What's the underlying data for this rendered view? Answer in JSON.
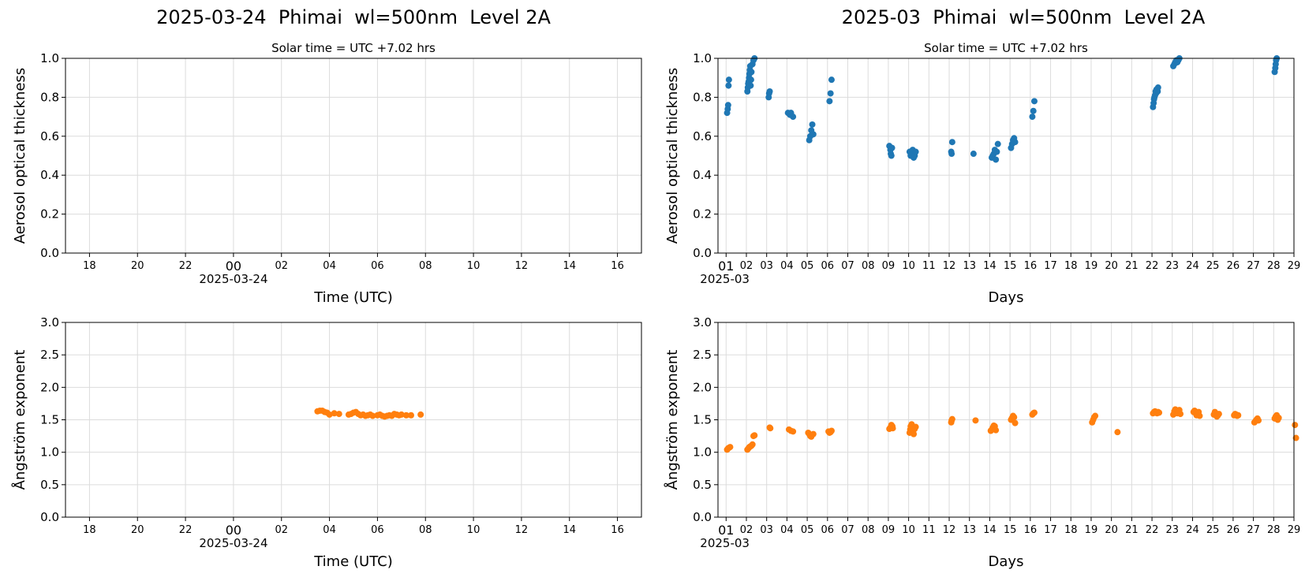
{
  "titles": {
    "left": "2025-03-24  Phimai  wl=500nm  Level 2A",
    "right": "2025-03  Phimai  wl=500nm  Level 2A"
  },
  "chart_data": [
    {
      "id": "daily_aod",
      "type": "scatter",
      "subtitle": "Solar time = UTC +7.02 hrs",
      "xlabel": "Time (UTC)",
      "ylabel": "Aerosol optical thickness",
      "x_tick_labels": [
        "18",
        "20",
        "22",
        "00",
        "02",
        "04",
        "06",
        "08",
        "10",
        "12",
        "14",
        "16"
      ],
      "x_date_label": "2025-03-24",
      "xlim_hours": [
        -7,
        17
      ],
      "ylim": [
        0,
        1.0
      ],
      "y_ticks": [
        "0.0",
        "0.2",
        "0.4",
        "0.6",
        "0.8",
        "1.0"
      ],
      "grid": true,
      "series": [
        {
          "color": "#1f77b4",
          "points": []
        }
      ]
    },
    {
      "id": "daily_angstrom",
      "type": "scatter",
      "xlabel": "Time (UTC)",
      "ylabel": "Ångström exponent",
      "x_tick_labels": [
        "18",
        "20",
        "22",
        "00",
        "02",
        "04",
        "06",
        "08",
        "10",
        "12",
        "14",
        "16"
      ],
      "x_date_label": "2025-03-24",
      "xlim_hours": [
        -7,
        17
      ],
      "ylim": [
        0,
        3.0
      ],
      "y_ticks": [
        "0.0",
        "0.5",
        "1.0",
        "1.5",
        "2.0",
        "2.5",
        "3.0"
      ],
      "grid": true,
      "series": [
        {
          "color": "#ff7f0e",
          "points": [
            [
              3.5,
              1.63
            ],
            [
              3.6,
              1.64
            ],
            [
              3.7,
              1.64
            ],
            [
              3.8,
              1.62
            ],
            [
              3.9,
              1.61
            ],
            [
              4.0,
              1.58
            ],
            [
              4.2,
              1.6
            ],
            [
              4.4,
              1.59
            ],
            [
              4.8,
              1.58
            ],
            [
              4.9,
              1.59
            ],
            [
              5.0,
              1.61
            ],
            [
              5.1,
              1.62
            ],
            [
              5.2,
              1.59
            ],
            [
              5.3,
              1.57
            ],
            [
              5.4,
              1.58
            ],
            [
              5.5,
              1.56
            ],
            [
              5.6,
              1.57
            ],
            [
              5.7,
              1.58
            ],
            [
              5.8,
              1.56
            ],
            [
              6.0,
              1.57
            ],
            [
              6.1,
              1.58
            ],
            [
              6.2,
              1.56
            ],
            [
              6.3,
              1.55
            ],
            [
              6.4,
              1.56
            ],
            [
              6.5,
              1.57
            ],
            [
              6.6,
              1.56
            ],
            [
              6.7,
              1.59
            ],
            [
              6.8,
              1.58
            ],
            [
              6.9,
              1.57
            ],
            [
              7.0,
              1.58
            ],
            [
              7.2,
              1.57
            ],
            [
              7.4,
              1.57
            ],
            [
              7.8,
              1.58
            ]
          ]
        }
      ]
    },
    {
      "id": "monthly_aod",
      "type": "scatter",
      "subtitle": "Solar time = UTC +7.02 hrs",
      "xlabel": "Days",
      "ylabel": "Aerosol optical thickness",
      "x_tick_labels": [
        "01",
        "02",
        "03",
        "04",
        "05",
        "06",
        "07",
        "08",
        "09",
        "10",
        "11",
        "12",
        "13",
        "14",
        "15",
        "16",
        "17",
        "18",
        "19",
        "20",
        "21",
        "22",
        "23",
        "24",
        "25",
        "26",
        "27",
        "28",
        "29"
      ],
      "x_date_label": "2025-03",
      "xlim_days": [
        0.6,
        29.0
      ],
      "ylim": [
        0,
        1.0
      ],
      "y_ticks": [
        "0.0",
        "0.2",
        "0.4",
        "0.6",
        "0.8",
        "1.0"
      ],
      "grid": true,
      "series": [
        {
          "color": "#1f77b4",
          "points": [
            [
              1.05,
              0.72
            ],
            [
              1.08,
              0.74
            ],
            [
              1.1,
              0.76
            ],
            [
              1.12,
              0.86
            ],
            [
              1.14,
              0.89
            ],
            [
              2.05,
              0.83
            ],
            [
              2.07,
              0.85
            ],
            [
              2.09,
              0.87
            ],
            [
              2.11,
              0.88
            ],
            [
              2.13,
              0.9
            ],
            [
              2.15,
              0.92
            ],
            [
              2.17,
              0.94
            ],
            [
              2.19,
              0.96
            ],
            [
              2.21,
              0.86
            ],
            [
              2.23,
              0.89
            ],
            [
              2.25,
              0.93
            ],
            [
              2.3,
              0.97
            ],
            [
              2.35,
              0.99
            ],
            [
              2.4,
              1.0
            ],
            [
              3.1,
              0.8
            ],
            [
              3.12,
              0.82
            ],
            [
              3.15,
              0.83
            ],
            [
              4.05,
              0.72
            ],
            [
              4.15,
              0.71
            ],
            [
              4.2,
              0.72
            ],
            [
              4.3,
              0.7
            ],
            [
              5.1,
              0.58
            ],
            [
              5.15,
              0.6
            ],
            [
              5.2,
              0.63
            ],
            [
              5.25,
              0.66
            ],
            [
              5.3,
              0.61
            ],
            [
              6.1,
              0.78
            ],
            [
              6.15,
              0.82
            ],
            [
              6.2,
              0.89
            ],
            [
              9.05,
              0.55
            ],
            [
              9.1,
              0.53
            ],
            [
              9.12,
              0.51
            ],
            [
              9.15,
              0.5
            ],
            [
              9.18,
              0.54
            ],
            [
              10.05,
              0.52
            ],
            [
              10.1,
              0.5
            ],
            [
              10.15,
              0.51
            ],
            [
              10.2,
              0.53
            ],
            [
              10.25,
              0.49
            ],
            [
              10.3,
              0.5
            ],
            [
              10.35,
              0.52
            ],
            [
              12.1,
              0.52
            ],
            [
              12.12,
              0.51
            ],
            [
              12.15,
              0.57
            ],
            [
              13.2,
              0.51
            ],
            [
              14.1,
              0.49
            ],
            [
              14.15,
              0.5
            ],
            [
              14.2,
              0.51
            ],
            [
              14.25,
              0.53
            ],
            [
              14.3,
              0.48
            ],
            [
              14.35,
              0.52
            ],
            [
              14.4,
              0.56
            ],
            [
              15.05,
              0.54
            ],
            [
              15.1,
              0.56
            ],
            [
              15.15,
              0.58
            ],
            [
              15.2,
              0.59
            ],
            [
              15.25,
              0.57
            ],
            [
              16.1,
              0.7
            ],
            [
              16.15,
              0.73
            ],
            [
              16.2,
              0.78
            ],
            [
              22.05,
              0.75
            ],
            [
              22.08,
              0.77
            ],
            [
              22.1,
              0.79
            ],
            [
              22.12,
              0.8
            ],
            [
              22.15,
              0.81
            ],
            [
              22.18,
              0.83
            ],
            [
              22.2,
              0.82
            ],
            [
              22.22,
              0.84
            ],
            [
              22.25,
              0.84
            ],
            [
              22.28,
              0.83
            ],
            [
              22.3,
              0.85
            ],
            [
              23.05,
              0.96
            ],
            [
              23.1,
              0.97
            ],
            [
              23.15,
              0.98
            ],
            [
              23.2,
              0.99
            ],
            [
              23.25,
              0.98
            ],
            [
              23.3,
              0.99
            ],
            [
              23.35,
              1.0
            ],
            [
              28.05,
              0.93
            ],
            [
              28.08,
              0.95
            ],
            [
              28.1,
              0.97
            ],
            [
              28.12,
              0.99
            ],
            [
              28.15,
              1.0
            ]
          ]
        }
      ]
    },
    {
      "id": "monthly_angstrom",
      "type": "scatter",
      "xlabel": "Days",
      "ylabel": "Ångström exponent",
      "x_tick_labels": [
        "01",
        "02",
        "03",
        "04",
        "05",
        "06",
        "07",
        "08",
        "09",
        "10",
        "11",
        "12",
        "13",
        "14",
        "15",
        "16",
        "17",
        "18",
        "19",
        "20",
        "21",
        "22",
        "23",
        "24",
        "25",
        "26",
        "27",
        "28",
        "29"
      ],
      "x_date_label": "2025-03",
      "xlim_days": [
        0.6,
        29.0
      ],
      "ylim": [
        0,
        3.0
      ],
      "y_ticks": [
        "0.0",
        "0.5",
        "1.0",
        "1.5",
        "2.0",
        "2.5",
        "3.0"
      ],
      "grid": true,
      "series": [
        {
          "color": "#ff7f0e",
          "points": [
            [
              1.05,
              1.04
            ],
            [
              1.1,
              1.06
            ],
            [
              1.15,
              1.07
            ],
            [
              1.2,
              1.08
            ],
            [
              2.05,
              1.04
            ],
            [
              2.1,
              1.06
            ],
            [
              2.15,
              1.08
            ],
            [
              2.2,
              1.09
            ],
            [
              2.25,
              1.1
            ],
            [
              2.3,
              1.12
            ],
            [
              2.35,
              1.25
            ],
            [
              2.4,
              1.26
            ],
            [
              3.15,
              1.38
            ],
            [
              3.18,
              1.37
            ],
            [
              4.1,
              1.35
            ],
            [
              4.2,
              1.33
            ],
            [
              4.3,
              1.32
            ],
            [
              5.05,
              1.3
            ],
            [
              5.1,
              1.28
            ],
            [
              5.15,
              1.25
            ],
            [
              5.2,
              1.24
            ],
            [
              5.3,
              1.28
            ],
            [
              6.05,
              1.32
            ],
            [
              6.1,
              1.3
            ],
            [
              6.15,
              1.31
            ],
            [
              6.2,
              1.33
            ],
            [
              9.05,
              1.36
            ],
            [
              9.1,
              1.38
            ],
            [
              9.15,
              1.42
            ],
            [
              9.2,
              1.4
            ],
            [
              9.22,
              1.37
            ],
            [
              10.05,
              1.3
            ],
            [
              10.08,
              1.35
            ],
            [
              10.1,
              1.4
            ],
            [
              10.15,
              1.43
            ],
            [
              10.18,
              1.38
            ],
            [
              10.22,
              1.31
            ],
            [
              10.25,
              1.28
            ],
            [
              10.3,
              1.36
            ],
            [
              10.35,
              1.39
            ],
            [
              12.1,
              1.46
            ],
            [
              12.12,
              1.49
            ],
            [
              12.15,
              1.51
            ],
            [
              13.3,
              1.49
            ],
            [
              14.05,
              1.33
            ],
            [
              14.1,
              1.35
            ],
            [
              14.15,
              1.38
            ],
            [
              14.2,
              1.41
            ],
            [
              14.25,
              1.4
            ],
            [
              14.3,
              1.34
            ],
            [
              15.05,
              1.5
            ],
            [
              15.1,
              1.53
            ],
            [
              15.15,
              1.56
            ],
            [
              15.2,
              1.54
            ],
            [
              15.25,
              1.45
            ],
            [
              16.1,
              1.58
            ],
            [
              16.15,
              1.6
            ],
            [
              16.2,
              1.61
            ],
            [
              19.05,
              1.46
            ],
            [
              19.1,
              1.5
            ],
            [
              19.15,
              1.54
            ],
            [
              19.2,
              1.56
            ],
            [
              20.3,
              1.31
            ],
            [
              22.05,
              1.6
            ],
            [
              22.1,
              1.62
            ],
            [
              22.15,
              1.63
            ],
            [
              22.2,
              1.61
            ],
            [
              22.25,
              1.6
            ],
            [
              22.3,
              1.62
            ],
            [
              22.35,
              1.61
            ],
            [
              23.05,
              1.58
            ],
            [
              23.1,
              1.63
            ],
            [
              23.15,
              1.66
            ],
            [
              23.2,
              1.64
            ],
            [
              23.25,
              1.6
            ],
            [
              23.3,
              1.62
            ],
            [
              23.35,
              1.65
            ],
            [
              23.4,
              1.59
            ],
            [
              24.05,
              1.62
            ],
            [
              24.1,
              1.64
            ],
            [
              24.15,
              1.6
            ],
            [
              24.2,
              1.57
            ],
            [
              24.25,
              1.59
            ],
            [
              24.3,
              1.62
            ],
            [
              24.35,
              1.56
            ],
            [
              25.05,
              1.58
            ],
            [
              25.1,
              1.62
            ],
            [
              25.15,
              1.6
            ],
            [
              25.2,
              1.55
            ],
            [
              25.25,
              1.57
            ],
            [
              25.3,
              1.59
            ],
            [
              26.05,
              1.57
            ],
            [
              26.1,
              1.59
            ],
            [
              26.15,
              1.58
            ],
            [
              26.2,
              1.56
            ],
            [
              26.25,
              1.57
            ],
            [
              27.05,
              1.46
            ],
            [
              27.1,
              1.48
            ],
            [
              27.15,
              1.5
            ],
            [
              27.2,
              1.52
            ],
            [
              27.25,
              1.49
            ],
            [
              28.05,
              1.52
            ],
            [
              28.1,
              1.55
            ],
            [
              28.15,
              1.57
            ],
            [
              28.2,
              1.5
            ],
            [
              28.25,
              1.53
            ],
            [
              29.05,
              1.42
            ],
            [
              29.1,
              1.22
            ]
          ]
        }
      ]
    }
  ]
}
